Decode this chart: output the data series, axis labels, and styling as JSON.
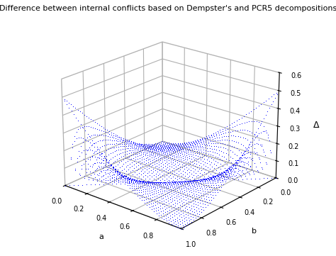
{
  "title": "Difference between internal conflicts based on Dempster's and PCR5 decompositions",
  "xlabel": "a",
  "ylabel": "b",
  "zlabel": "Δ",
  "xlim": [
    0,
    1
  ],
  "ylim": [
    0,
    1
  ],
  "zlim": [
    0,
    0.6
  ],
  "zticks": [
    0,
    0.1,
    0.2,
    0.3,
    0.4,
    0.5,
    0.6
  ],
  "dot_color": "#0000ff",
  "dot_size": 2.0,
  "n_points": 51,
  "background_color": "#ffffff",
  "title_fontsize": 8,
  "elev": 22,
  "azim": -50
}
